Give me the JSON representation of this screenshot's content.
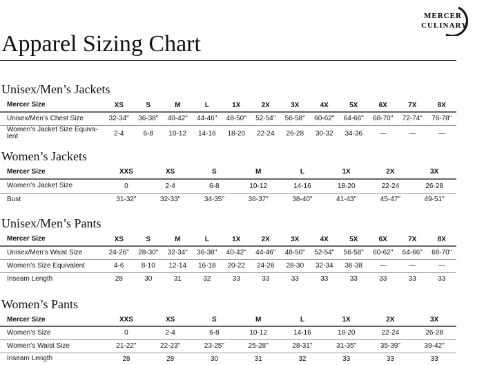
{
  "title": "Apparel Sizing Chart",
  "logo": {
    "line1": "MERCER",
    "line2": "CULINARY"
  },
  "sections": [
    {
      "heading": "Unisex/Men’s Jackets",
      "columns": [
        "Mercer Size",
        "XS",
        "S",
        "M",
        "L",
        "1X",
        "2X",
        "3X",
        "4X",
        "5X",
        "6X",
        "7X",
        "8X"
      ],
      "rows": [
        [
          "Unisex/Men’s Chest Size",
          "32-34\"",
          "36-38\"",
          "40-42\"",
          "44-46\"",
          "48-50\"",
          "52-54\"",
          "56-58\"",
          "60-62\"",
          "64-66\"",
          "68-70\"",
          "72-74\"",
          "76-78\""
        ],
        [
          "Women’s Jacket Size Equiva-lent",
          "2-4",
          "6-8",
          "10-12",
          "14-16",
          "18-20",
          "22-24",
          "26-28",
          "30-32",
          "34-36",
          "—",
          "—",
          "—"
        ]
      ]
    },
    {
      "heading": "Women’s Jackets",
      "columns": [
        "Mercer Size",
        "XXS",
        "XS",
        "S",
        "M",
        "L",
        "1X",
        "2X",
        "3X"
      ],
      "rows": [
        [
          "Women’s Jacket Size",
          "0",
          "2-4",
          "6-8",
          "10-12",
          "14-16",
          "18-20",
          "22-24",
          "26-28"
        ],
        [
          "Bust",
          "31-32\"",
          "32-33\"",
          "34-35\"",
          "36-37\"",
          "38-40\"",
          "41-43\"",
          "45-47\"",
          "49-51\""
        ]
      ]
    },
    {
      "heading": "Unisex/Men’s Pants",
      "columns": [
        "Mercer Size",
        "XS",
        "S",
        "M",
        "L",
        "1X",
        "2X",
        "3X",
        "4X",
        "5X",
        "6X",
        "7X",
        "8X"
      ],
      "rows": [
        [
          "Unisex/Men’s Waist Size",
          "24-26\"",
          "28-30\"",
          "32-34\"",
          "36-38\"",
          "40-42\"",
          "44-46\"",
          "48-50\"",
          "52-54\"",
          "56-58\"",
          "60-62\"",
          "64-66\"",
          "68-70\""
        ],
        [
          "Women’s Size Equivalent",
          "4-6",
          "8-10",
          "12-14",
          "16-18",
          "20-22",
          "24-26",
          "28-30",
          "32-34",
          "36-38",
          "—",
          "—",
          "—"
        ],
        [
          "Inseam Length",
          "28",
          "30",
          "31",
          "32",
          "33",
          "33",
          "33",
          "33",
          "33",
          "33",
          "33",
          "33"
        ]
      ]
    },
    {
      "heading": "Women’s Pants",
      "columns": [
        "Mercer Size",
        "XXS",
        "XS",
        "S",
        "M",
        "L",
        "1X",
        "2X",
        "3X"
      ],
      "rows": [
        [
          "Women’s Size",
          "0",
          "2-4",
          "6-8",
          "10-12",
          "14-16",
          "18-20",
          "22-24",
          "26-28"
        ],
        [
          "Women’s Waist Size",
          "21-22\"",
          "22-23\"",
          "23-25\"",
          "25-28\"",
          "28-31\"",
          "31-35\"",
          "35-39\"",
          "39-42\""
        ],
        [
          "Inseam Length",
          "28",
          "28",
          "30",
          "31",
          "32",
          "33",
          "33",
          "33"
        ]
      ]
    }
  ]
}
